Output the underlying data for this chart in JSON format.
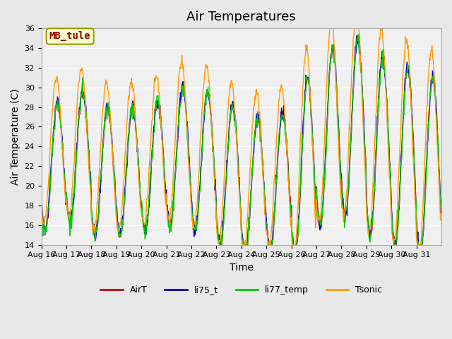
{
  "title": "Air Temperatures",
  "xlabel": "Time",
  "ylabel": "Air Temperature (C)",
  "ylim": [
    14,
    36
  ],
  "yticks": [
    14,
    16,
    18,
    20,
    22,
    24,
    26,
    28,
    30,
    32,
    34,
    36
  ],
  "date_labels": [
    "Aug 16",
    "Aug 17",
    "Aug 18",
    "Aug 19",
    "Aug 20",
    "Aug 21",
    "Aug 22",
    "Aug 23",
    "Aug 24",
    "Aug 25",
    "Aug 26",
    "Aug 27",
    "Aug 28",
    "Aug 29",
    "Aug 30",
    "Aug 31"
  ],
  "series_names": [
    "AirT",
    "li75_t",
    "li77_temp",
    "Tsonic"
  ],
  "series_colors": [
    "#cc0000",
    "#0000cc",
    "#00cc00",
    "#ff9900"
  ],
  "bg_color": "#e8e8e8",
  "plot_bg": "#f0f0f0",
  "annotation_text": "MB_tule",
  "annotation_color": "#8b0000",
  "annotation_bg": "#ffffcc",
  "annotation_border": "#999900",
  "grid_color": "#ffffff",
  "title_fontsize": 13,
  "axis_fontsize": 10,
  "tick_fontsize": 8,
  "legend_fontsize": 9
}
